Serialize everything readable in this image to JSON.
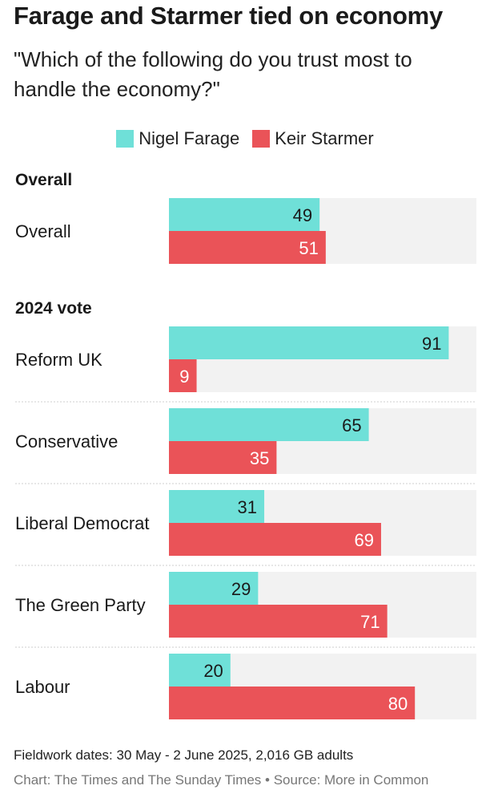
{
  "colors": {
    "farage": "#6fe0d8",
    "starmer": "#ea5358",
    "track": "#f2f2f2",
    "divider": "#cfcfcf"
  },
  "chart_data": {
    "type": "bar",
    "orientation": "horizontal",
    "title": "Farage and Starmer tied on economy",
    "subtitle": "\"Which of the following do you trust most to handle the economy?\"",
    "xlim": [
      0,
      100
    ],
    "legend": [
      {
        "name": "Nigel Farage",
        "color_key": "farage"
      },
      {
        "name": "Keir Starmer",
        "color_key": "starmer"
      }
    ],
    "groups": [
      {
        "heading": "Overall",
        "rows": [
          {
            "label": "Overall",
            "farage": 49,
            "starmer": 51
          }
        ]
      },
      {
        "heading": "2024 vote",
        "rows": [
          {
            "label": "Reform UK",
            "farage": 91,
            "starmer": 9
          },
          {
            "label": "Conservative",
            "farage": 65,
            "starmer": 35
          },
          {
            "label": "Liberal Democrat",
            "farage": 31,
            "starmer": 69
          },
          {
            "label": "The Green Party",
            "farage": 29,
            "starmer": 71
          },
          {
            "label": "Labour",
            "farage": 20,
            "starmer": 80
          }
        ]
      }
    ]
  },
  "footer": {
    "fieldwork": "Fieldwork dates: 30 May - 2 June 2025, 2,016 GB adults",
    "credit": "Chart: The Times and The Sunday Times • Source: More in Common"
  }
}
